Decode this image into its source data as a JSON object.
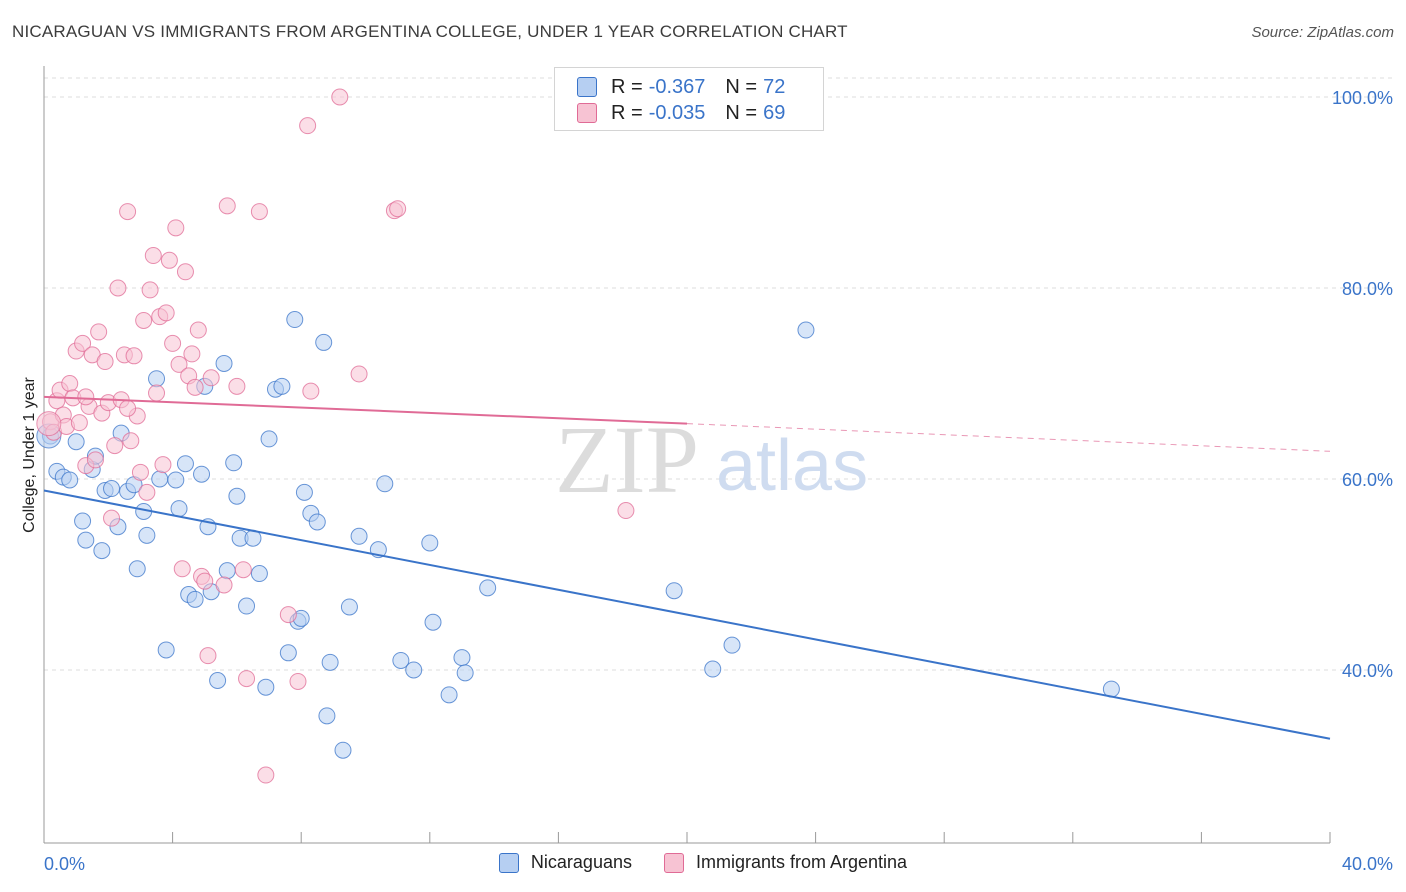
{
  "title": "NICARAGUAN VS IMMIGRANTS FROM ARGENTINA COLLEGE, UNDER 1 YEAR CORRELATION CHART",
  "source": "Source: ZipAtlas.com",
  "watermark": {
    "zip": "ZIP",
    "atlas": "atlas"
  },
  "colors": {
    "blue": "#3a74c9",
    "blue_fill": "#b6cff2",
    "pink": "#e06b96",
    "pink_fill": "#f7c3d3",
    "grid": "#dddddd"
  },
  "legend": {
    "rows": [
      {
        "r_label": "R =",
        "r_value": "-0.367",
        "n_label": "N =",
        "n_value": "72"
      },
      {
        "r_label": "R =",
        "r_value": "-0.035",
        "n_label": "N =",
        "n_value": "69"
      }
    ]
  },
  "bottom_legend": [
    "Nicaraguans",
    "Immigrants from Argentina"
  ],
  "chart_data": {
    "type": "scatter",
    "xlabel": "",
    "ylabel": "College, Under 1 year",
    "xlim": [
      0,
      40
    ],
    "ylim": [
      22,
      104
    ],
    "x_tick_labels": [
      "0.0%",
      "40.0%"
    ],
    "y_ticks": [
      40,
      60,
      80,
      100
    ],
    "y_tick_labels": [
      "40.0%",
      "60.0%",
      "80.0%",
      "100.0%"
    ],
    "grid": "horizontal dashed",
    "legend_position": "top-center",
    "series": [
      {
        "name": "Nicaraguans",
        "color": "#3a74c9",
        "trend": {
          "x0": 0,
          "y0": 58.8,
          "x1": 40,
          "y1": 32.8
        },
        "points": [
          [
            0.2,
            64.5
          ],
          [
            0.4,
            60.8
          ],
          [
            0.6,
            60.2
          ],
          [
            0.8,
            59.9
          ],
          [
            1.0,
            63.9
          ],
          [
            1.2,
            55.6
          ],
          [
            1.3,
            53.6
          ],
          [
            1.5,
            61.0
          ],
          [
            1.6,
            62.4
          ],
          [
            1.8,
            52.5
          ],
          [
            1.9,
            58.8
          ],
          [
            2.1,
            59.0
          ],
          [
            2.3,
            55.0
          ],
          [
            2.4,
            64.8
          ],
          [
            2.6,
            58.7
          ],
          [
            2.8,
            59.4
          ],
          [
            2.9,
            50.6
          ],
          [
            3.1,
            56.6
          ],
          [
            3.2,
            54.1
          ],
          [
            3.5,
            70.5
          ],
          [
            3.6,
            60.0
          ],
          [
            3.8,
            42.1
          ],
          [
            4.1,
            59.9
          ],
          [
            4.2,
            56.9
          ],
          [
            4.4,
            61.6
          ],
          [
            4.5,
            47.9
          ],
          [
            4.7,
            47.4
          ],
          [
            4.9,
            60.5
          ],
          [
            5.0,
            69.7
          ],
          [
            5.1,
            55.0
          ],
          [
            5.2,
            48.2
          ],
          [
            5.4,
            38.9
          ],
          [
            5.6,
            72.1
          ],
          [
            5.7,
            50.4
          ],
          [
            5.9,
            61.7
          ],
          [
            6.0,
            58.2
          ],
          [
            6.1,
            53.8
          ],
          [
            6.3,
            46.7
          ],
          [
            6.5,
            53.8
          ],
          [
            6.7,
            50.1
          ],
          [
            6.9,
            38.2
          ],
          [
            7.0,
            64.2
          ],
          [
            7.2,
            69.4
          ],
          [
            7.4,
            69.7
          ],
          [
            7.6,
            41.8
          ],
          [
            7.8,
            76.7
          ],
          [
            7.9,
            45.1
          ],
          [
            8.0,
            45.4
          ],
          [
            8.1,
            58.6
          ],
          [
            8.3,
            56.4
          ],
          [
            8.5,
            55.5
          ],
          [
            8.7,
            74.3
          ],
          [
            8.8,
            35.2
          ],
          [
            8.9,
            40.8
          ],
          [
            9.3,
            31.6
          ],
          [
            9.5,
            46.6
          ],
          [
            9.8,
            54.0
          ],
          [
            10.4,
            52.6
          ],
          [
            10.6,
            59.5
          ],
          [
            11.1,
            41.0
          ],
          [
            11.5,
            40.0
          ],
          [
            12.0,
            53.3
          ],
          [
            12.1,
            45.0
          ],
          [
            12.6,
            37.4
          ],
          [
            13.0,
            41.3
          ],
          [
            13.1,
            39.7
          ],
          [
            13.8,
            48.6
          ],
          [
            19.6,
            48.3
          ],
          [
            20.8,
            40.1
          ],
          [
            21.4,
            42.6
          ],
          [
            23.7,
            75.6
          ],
          [
            33.2,
            38.0
          ]
        ]
      },
      {
        "name": "Immigrants from Argentina",
        "color": "#e06b96",
        "trend": {
          "x0": 0,
          "y0": 68.6,
          "x1": 20,
          "y1": 65.8,
          "dash_to": {
            "x": 40,
            "y": 62.9
          }
        },
        "points": [
          [
            0.2,
            66.0
          ],
          [
            0.3,
            64.9
          ],
          [
            0.4,
            68.2
          ],
          [
            0.5,
            69.3
          ],
          [
            0.6,
            66.7
          ],
          [
            0.7,
            65.5
          ],
          [
            0.8,
            70.0
          ],
          [
            0.9,
            68.5
          ],
          [
            1.0,
            73.4
          ],
          [
            1.1,
            65.9
          ],
          [
            1.2,
            74.2
          ],
          [
            1.3,
            61.4
          ],
          [
            1.4,
            67.6
          ],
          [
            1.5,
            73.0
          ],
          [
            1.6,
            62.0
          ],
          [
            1.7,
            75.4
          ],
          [
            1.8,
            66.9
          ],
          [
            1.9,
            72.3
          ],
          [
            2.0,
            68.0
          ],
          [
            2.1,
            55.9
          ],
          [
            2.2,
            63.5
          ],
          [
            2.3,
            80.0
          ],
          [
            2.4,
            68.3
          ],
          [
            2.5,
            73.0
          ],
          [
            2.6,
            88.0
          ],
          [
            2.7,
            64.0
          ],
          [
            2.8,
            72.9
          ],
          [
            2.9,
            66.6
          ],
          [
            3.0,
            60.7
          ],
          [
            3.1,
            76.6
          ],
          [
            3.2,
            58.6
          ],
          [
            3.3,
            79.8
          ],
          [
            3.4,
            83.4
          ],
          [
            3.5,
            69.0
          ],
          [
            3.6,
            77.0
          ],
          [
            3.7,
            61.5
          ],
          [
            3.8,
            77.4
          ],
          [
            3.9,
            82.9
          ],
          [
            4.0,
            74.2
          ],
          [
            4.1,
            86.3
          ],
          [
            4.2,
            72.0
          ],
          [
            4.3,
            50.6
          ],
          [
            4.4,
            81.7
          ],
          [
            4.5,
            70.8
          ],
          [
            4.6,
            73.1
          ],
          [
            4.7,
            69.6
          ],
          [
            4.8,
            75.6
          ],
          [
            4.9,
            49.8
          ],
          [
            5.0,
            49.3
          ],
          [
            5.1,
            41.5
          ],
          [
            5.2,
            70.6
          ],
          [
            5.6,
            48.9
          ],
          [
            5.7,
            88.6
          ],
          [
            6.0,
            69.7
          ],
          [
            6.2,
            50.5
          ],
          [
            6.3,
            39.1
          ],
          [
            6.9,
            29.0
          ],
          [
            6.7,
            88.0
          ],
          [
            7.6,
            45.8
          ],
          [
            7.9,
            38.8
          ],
          [
            8.2,
            97.0
          ],
          [
            8.3,
            69.2
          ],
          [
            9.2,
            100.0
          ],
          [
            9.8,
            71.0
          ],
          [
            10.9,
            88.1
          ],
          [
            11.0,
            88.3
          ],
          [
            18.1,
            56.7
          ],
          [
            1.3,
            68.6
          ],
          [
            2.6,
            67.4
          ]
        ]
      }
    ]
  }
}
